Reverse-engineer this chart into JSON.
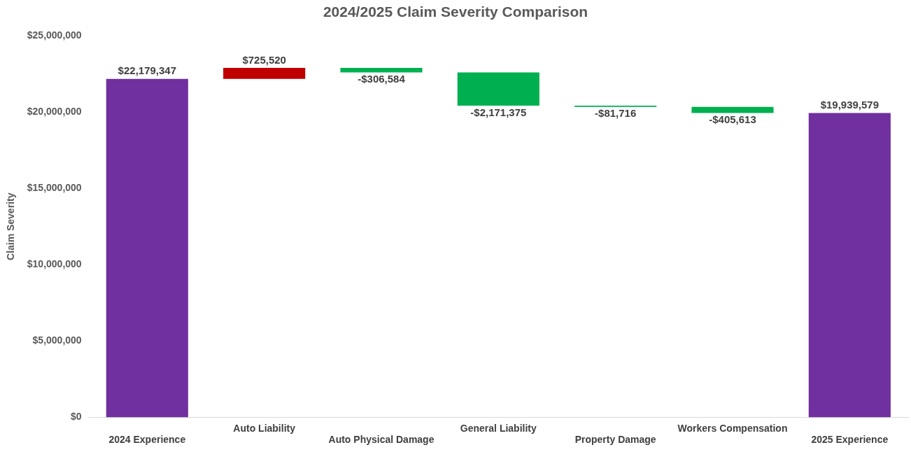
{
  "chart_data": {
    "type": "bar",
    "title": "2024/2025 Claim Severity Comparison",
    "ylabel": "Claim Severity",
    "categories": [
      "2024 Experience",
      "Auto Liability",
      "Auto Physical Damage",
      "General Liability",
      "Property Damage",
      "Workers Compensation",
      "2025 Experience"
    ],
    "values": [
      22179347,
      725520,
      -306584,
      -2171375,
      -81716,
      -405613,
      19939579
    ],
    "base": [
      0,
      22179347,
      22904867,
      22598283,
      20426908,
      20345192,
      0
    ],
    "colors": [
      "#7030a0",
      "#c00000",
      "#00b050",
      "#00b050",
      "#00b050",
      "#00b050",
      "#7030a0"
    ],
    "value_labels": [
      "$22,179,347",
      "$725,520",
      "-$306,584",
      "-$2,171,375",
      "-$81,716",
      "-$405,613",
      "$19,939,579"
    ],
    "ylim": [
      0,
      25000000
    ],
    "yticks": [
      {
        "value": 0,
        "label": "$0"
      },
      {
        "value": 5000000,
        "label": "$5,000,000"
      },
      {
        "value": 10000000,
        "label": "$10,000,000"
      },
      {
        "value": 15000000,
        "label": "$15,000,000"
      },
      {
        "value": 20000000,
        "label": "$20,000,000"
      },
      {
        "value": 25000000,
        "label": "$25,000,000"
      }
    ],
    "grid": false,
    "legend": false
  }
}
